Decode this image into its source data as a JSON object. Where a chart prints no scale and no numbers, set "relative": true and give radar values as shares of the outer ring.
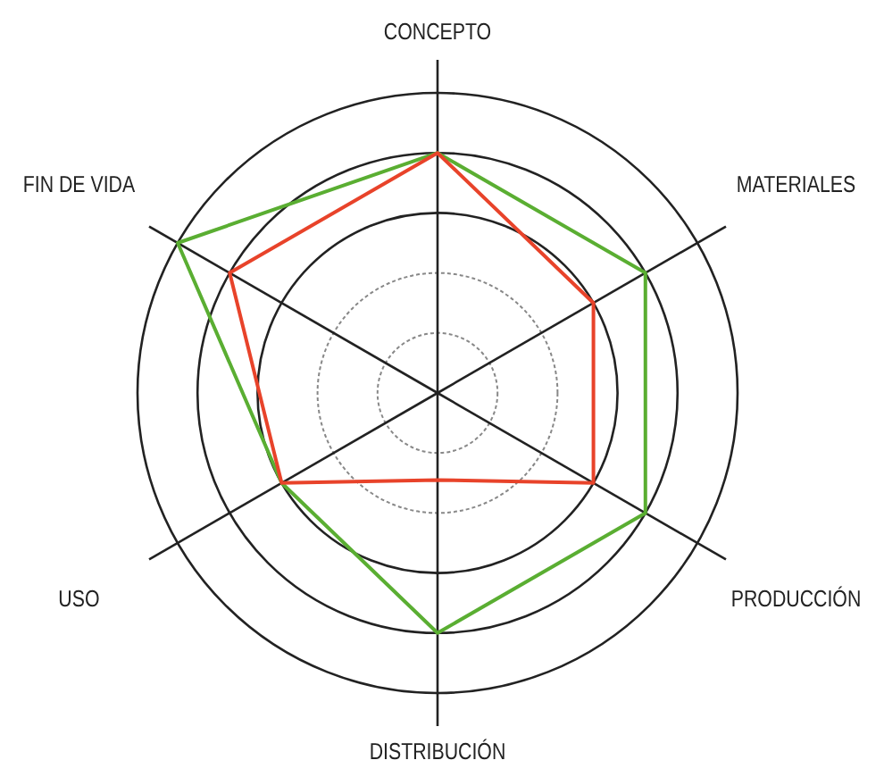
{
  "chart_data": {
    "type": "radar",
    "relative": true,
    "categories": [
      "CONCEPTO",
      "MATERIALES",
      "PRODUCCIÓN",
      "DISTRIBUCIÓN",
      "USO",
      "FIN DE VIDA"
    ],
    "series": [
      {
        "color": "#5aae32",
        "values": [
          0.8,
          0.8,
          0.8,
          0.8,
          0.6,
          1.0
        ]
      },
      {
        "color": "#e8432a",
        "values": [
          0.8,
          0.6,
          0.6,
          0.29,
          0.6,
          0.8
        ]
      }
    ]
  }
}
